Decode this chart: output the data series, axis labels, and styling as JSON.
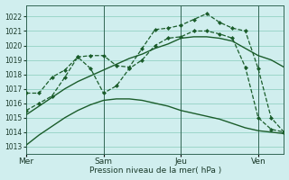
{
  "bg_color": "#d0eeee",
  "grid_color": "#88ccbb",
  "line_color": "#1a5c2a",
  "xlabel": "Pression niveau de la mer( hPa )",
  "ylim": [
    1012.5,
    1022.8
  ],
  "yticks": [
    1013,
    1014,
    1015,
    1016,
    1017,
    1018,
    1019,
    1020,
    1021,
    1022
  ],
  "xtick_labels": [
    "Mer",
    "Sam",
    "Jeu",
    "Ven"
  ],
  "xtick_positions": [
    0,
    30,
    60,
    90
  ],
  "vline_positions": [
    0,
    30,
    60,
    90
  ],
  "line1": {
    "x": [
      0,
      5,
      10,
      15,
      20,
      25,
      30,
      35,
      40,
      45,
      50,
      55,
      60,
      65,
      70,
      75,
      80,
      85,
      90,
      95,
      100
    ],
    "y": [
      1013.1,
      1013.8,
      1014.4,
      1015.0,
      1015.5,
      1015.9,
      1016.2,
      1016.3,
      1016.3,
      1016.2,
      1016.0,
      1015.8,
      1015.5,
      1015.3,
      1015.1,
      1014.9,
      1014.6,
      1014.3,
      1014.1,
      1014.0,
      1013.9
    ],
    "dashed": false,
    "markers": false
  },
  "line2": {
    "x": [
      0,
      5,
      10,
      15,
      20,
      25,
      30,
      35,
      40,
      45,
      50,
      55,
      60,
      65,
      70,
      75,
      80,
      85,
      90,
      95,
      100
    ],
    "y": [
      1015.2,
      1015.8,
      1016.4,
      1017.0,
      1017.5,
      1017.9,
      1018.3,
      1018.7,
      1019.1,
      1019.4,
      1019.8,
      1020.1,
      1020.5,
      1020.6,
      1020.6,
      1020.5,
      1020.3,
      1019.8,
      1019.3,
      1019.0,
      1018.5
    ],
    "dashed": false,
    "markers": false
  },
  "line3": {
    "x": [
      0,
      5,
      10,
      15,
      20,
      25,
      30,
      35,
      40,
      45,
      50,
      55,
      60,
      65,
      70,
      75,
      80,
      85,
      90,
      95,
      100
    ],
    "y": [
      1015.5,
      1016.0,
      1016.5,
      1017.8,
      1019.2,
      1018.4,
      1016.7,
      1017.2,
      1018.4,
      1019.0,
      1020.0,
      1020.5,
      1020.6,
      1021.0,
      1021.0,
      1020.8,
      1020.5,
      1018.5,
      1015.0,
      1014.2,
      1014.0
    ],
    "dashed": true,
    "markers": true
  },
  "line4": {
    "x": [
      0,
      5,
      10,
      15,
      20,
      25,
      30,
      35,
      40,
      45,
      50,
      55,
      60,
      65,
      70,
      75,
      80,
      85,
      90,
      95,
      100
    ],
    "y": [
      1016.7,
      1016.7,
      1017.8,
      1018.3,
      1019.2,
      1019.3,
      1019.3,
      1018.6,
      1018.5,
      1019.8,
      1021.1,
      1021.2,
      1021.4,
      1021.8,
      1022.2,
      1021.6,
      1021.2,
      1021.0,
      1018.4,
      1015.0,
      1014.0
    ],
    "dashed": true,
    "markers": true
  },
  "xlim": [
    0,
    100
  ]
}
